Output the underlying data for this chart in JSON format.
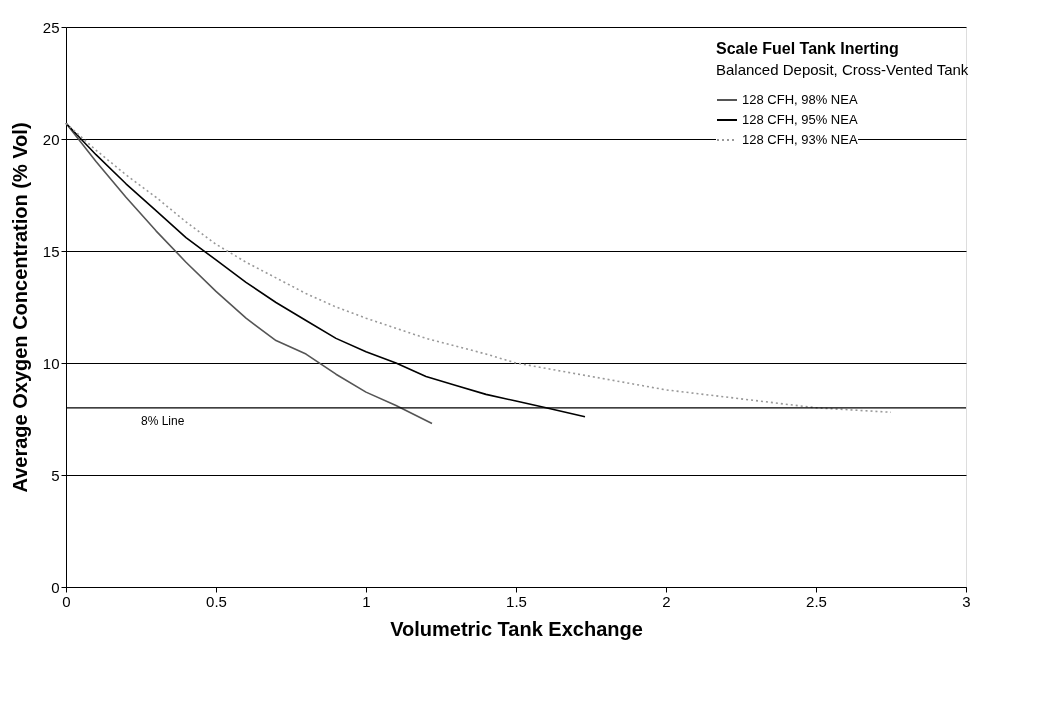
{
  "chart_data": {
    "type": "line",
    "title": "Scale Fuel Tank Inerting",
    "subtitle": "Balanced Deposit, Cross-Vented Tank",
    "xlabel": "Volumetric Tank Exchange",
    "ylabel": "Average Oxygen Concentration (% Vol)",
    "xlim": [
      0,
      3
    ],
    "xticks": [
      0,
      0.5,
      1,
      1.5,
      2,
      2.5,
      3
    ],
    "ylim": [
      0,
      25
    ],
    "yticks": [
      0,
      5,
      10,
      15,
      20,
      25
    ],
    "grid": "y",
    "legend": "top right",
    "marker": "none",
    "ref_lines": [
      {
        "axis": "y",
        "value": 8,
        "label": "8% Line",
        "color": "#000000"
      }
    ],
    "series": [
      {
        "name": "128 CFH, 98% NEA",
        "color": "#555555",
        "line_style": "solid",
        "x": [
          0,
          0.1,
          0.2,
          0.3,
          0.4,
          0.5,
          0.6,
          0.7,
          0.8,
          0.9,
          1.0,
          1.1,
          1.22
        ],
        "values": [
          20.7,
          19.0,
          17.4,
          15.9,
          14.5,
          13.2,
          12.0,
          11.0,
          10.4,
          9.5,
          8.7,
          8.1,
          7.3
        ]
      },
      {
        "name": "128 CFH, 95% NEA",
        "color": "#000000",
        "line_style": "solid",
        "x": [
          0,
          0.1,
          0.2,
          0.3,
          0.4,
          0.5,
          0.6,
          0.7,
          0.8,
          0.9,
          1.0,
          1.1,
          1.2,
          1.3,
          1.4,
          1.5,
          1.6,
          1.73
        ],
        "values": [
          20.7,
          19.3,
          18.0,
          16.8,
          15.6,
          14.6,
          13.6,
          12.7,
          11.9,
          11.1,
          10.5,
          10.0,
          9.4,
          9.0,
          8.6,
          8.3,
          8.0,
          7.6
        ]
      },
      {
        "name": "128 CFH, 93% NEA",
        "color": "#999999",
        "line_style": "dotted",
        "x": [
          0,
          0.1,
          0.2,
          0.3,
          0.4,
          0.5,
          0.6,
          0.7,
          0.8,
          0.9,
          1.0,
          1.2,
          1.4,
          1.5,
          1.75,
          2.0,
          2.25,
          2.5,
          2.75
        ],
        "values": [
          20.7,
          19.5,
          18.4,
          17.4,
          16.3,
          15.3,
          14.5,
          13.8,
          13.1,
          12.5,
          12.0,
          11.1,
          10.4,
          10.0,
          9.4,
          8.8,
          8.4,
          8.0,
          7.8
        ]
      }
    ]
  }
}
